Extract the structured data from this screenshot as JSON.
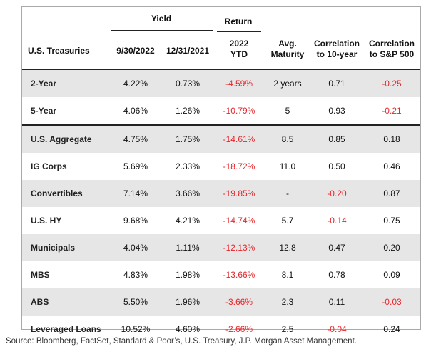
{
  "header": {
    "yield_label": "Yield",
    "return_label": "Return",
    "category_label": "U.S. Treasuries",
    "col_yield_a": "9/30/2022",
    "col_yield_b": "12/31/2021",
    "col_return_line1": "2022",
    "col_return_line2": "YTD",
    "col_maturity_line1": "Avg.",
    "col_maturity_line2": "Maturity",
    "col_corr10_line1": "Correlation",
    "col_corr10_line2": "to 10-year",
    "col_corrsp_line1": "Correlation",
    "col_corrsp_line2": "to S&P 500"
  },
  "rows": [
    {
      "label": "2-Year",
      "yield_a": "4.22%",
      "yield_b": "0.73%",
      "return": "-4.59%",
      "maturity": "2 years",
      "corr10": "0.71",
      "corrsp": "-0.25"
    },
    {
      "label": "5-Year",
      "yield_a": "4.06%",
      "yield_b": "1.26%",
      "return": "-10.79%",
      "maturity": "5",
      "corr10": "0.93",
      "corrsp": "-0.21"
    },
    {
      "label": "U.S. Aggregate",
      "yield_a": "4.75%",
      "yield_b": "1.75%",
      "return": "-14.61%",
      "maturity": "8.5",
      "corr10": "0.85",
      "corrsp": "0.18"
    },
    {
      "label": "IG Corps",
      "yield_a": "5.69%",
      "yield_b": "2.33%",
      "return": "-18.72%",
      "maturity": "11.0",
      "corr10": "0.50",
      "corrsp": "0.46"
    },
    {
      "label": "Convertibles",
      "yield_a": "7.14%",
      "yield_b": "3.66%",
      "return": "-19.85%",
      "maturity": "-",
      "corr10": "-0.20",
      "corrsp": "0.87"
    },
    {
      "label": "U.S. HY",
      "yield_a": "9.68%",
      "yield_b": "4.21%",
      "return": "-14.74%",
      "maturity": "5.7",
      "corr10": "-0.14",
      "corrsp": "0.75"
    },
    {
      "label": "Municipals",
      "yield_a": "4.04%",
      "yield_b": "1.11%",
      "return": "-12.13%",
      "maturity": "12.8",
      "corr10": "0.47",
      "corrsp": "0.20"
    },
    {
      "label": "MBS",
      "yield_a": "4.83%",
      "yield_b": "1.98%",
      "return": "-13.66%",
      "maturity": "8.1",
      "corr10": "0.78",
      "corrsp": "0.09"
    },
    {
      "label": "ABS",
      "yield_a": "5.50%",
      "yield_b": "1.96%",
      "return": "-3.66%",
      "maturity": "2.3",
      "corr10": "0.11",
      "corrsp": "-0.03"
    },
    {
      "label": "Leveraged Loans",
      "yield_a": "10.52%",
      "yield_b": "4.60%",
      "return": "-2.66%",
      "maturity": "2.5",
      "corr10": "-0.04",
      "corrsp": "0.24"
    }
  ],
  "source": "Source: Bloomberg, FactSet, Standard & Poor’s, U.S. Treasury, J.P. Morgan Asset Management.",
  "colors": {
    "negative": "#e6262b",
    "shade": "#e6e6e6"
  }
}
